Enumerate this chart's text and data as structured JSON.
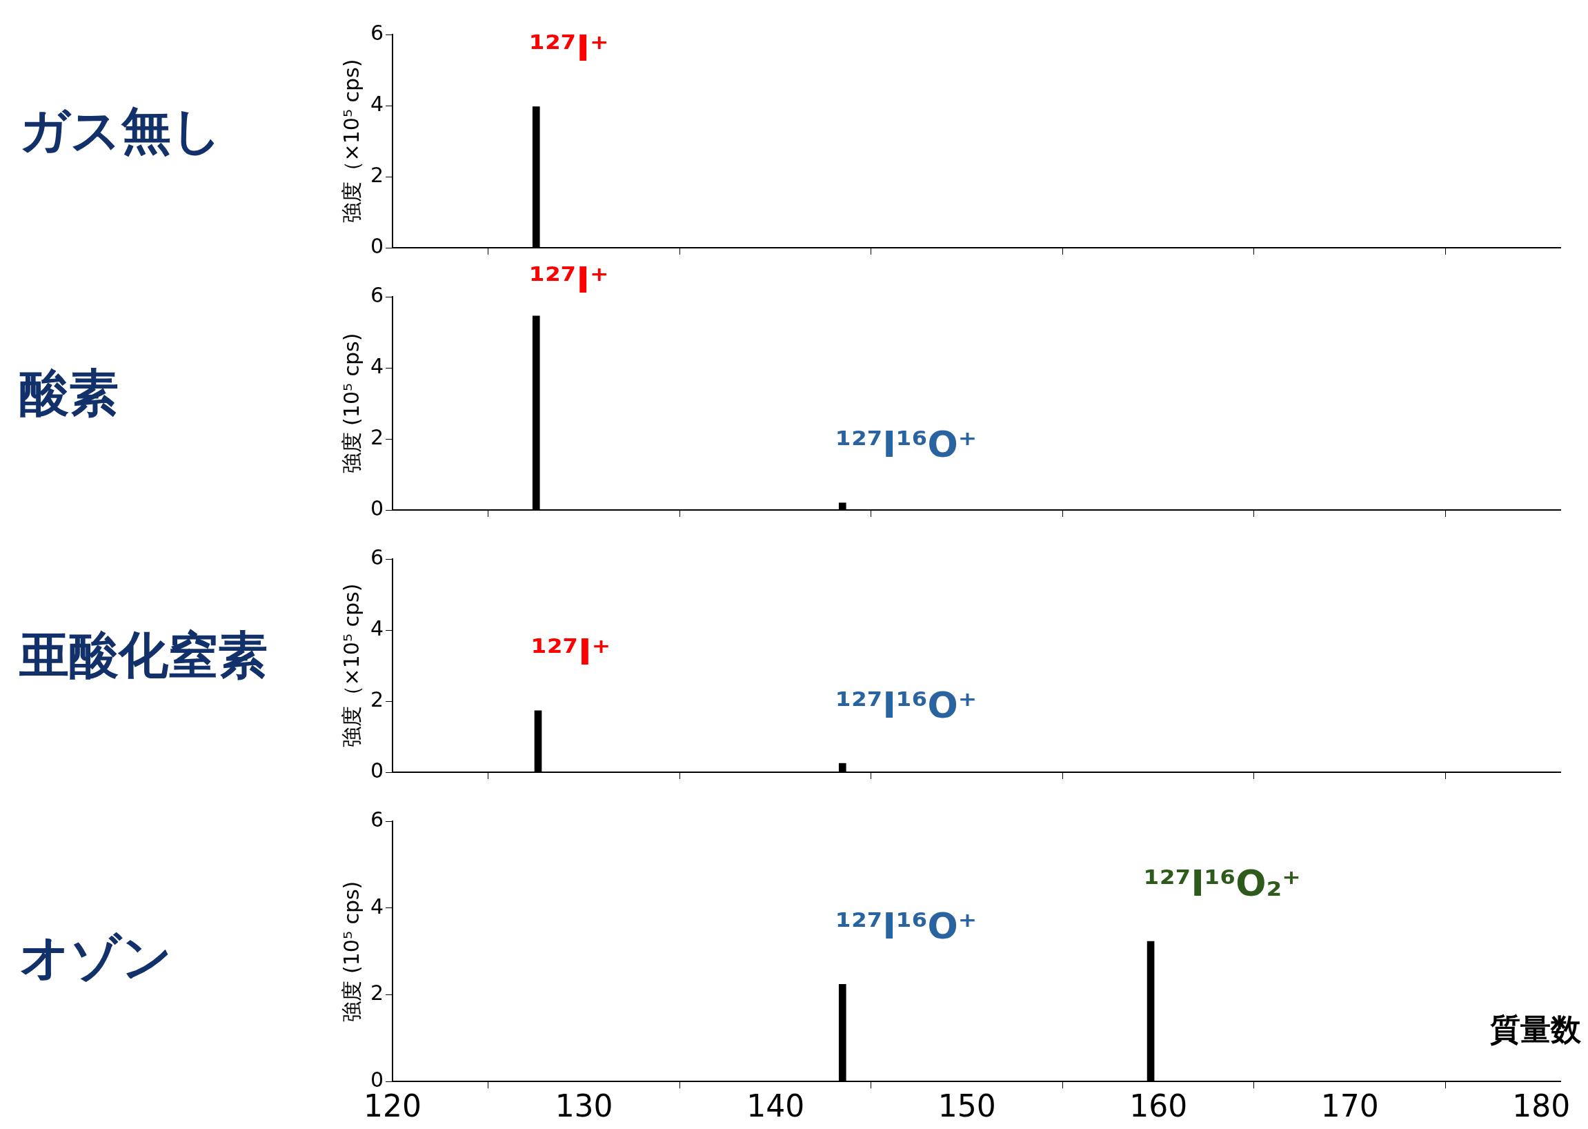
{
  "chart_data": [
    {
      "type": "bar",
      "title": "ガス無し",
      "ylabel": "強度（×10⁵ cps)",
      "x": [
        127.5
      ],
      "values": [
        3.97
      ],
      "color": "#000000",
      "xlim": [
        120,
        181
      ],
      "xticks": [
        120,
        130,
        140,
        150,
        160,
        170,
        180
      ],
      "ylim": [
        0,
        6
      ],
      "yticks": [
        0,
        2,
        4,
        6
      ],
      "tick_labels": "y",
      "grid": false,
      "legend": false,
      "annotations": [
        "¹²⁷I⁺"
      ]
    },
    {
      "type": "bar",
      "title": "酸素",
      "ylabel": "強度 (10⁵ cps)",
      "x": [
        127.5,
        143.5
      ],
      "values": [
        5.46,
        0.2
      ],
      "color": "#000000",
      "xlim": [
        120,
        181
      ],
      "xticks": [
        120,
        130,
        140,
        150,
        160,
        170,
        180
      ],
      "ylim": [
        0,
        6
      ],
      "yticks": [
        0,
        2,
        4,
        6
      ],
      "tick_labels": "y",
      "grid": false,
      "legend": false,
      "annotations": [
        "¹²⁷I⁺",
        "¹²⁷I¹⁶O⁺"
      ]
    },
    {
      "type": "bar",
      "title": "亜酸化窒素",
      "ylabel": "強度（×10⁵ cps)",
      "x": [
        127.6,
        143.5
      ],
      "values": [
        1.73,
        0.25
      ],
      "color": "#000000",
      "xlim": [
        120,
        181
      ],
      "xticks": [
        120,
        130,
        140,
        150,
        160,
        170,
        180
      ],
      "ylim": [
        0,
        6
      ],
      "yticks": [
        0,
        2,
        4,
        6
      ],
      "tick_labels": "y",
      "grid": false,
      "legend": false,
      "annotations": [
        "¹²⁷I⁺",
        "¹²⁷I¹⁶O⁺"
      ]
    },
    {
      "type": "bar",
      "title": "オゾン",
      "ylabel": "強度 (10⁵ cps)",
      "xlabel": "質量数",
      "x": [
        143.5,
        159.6
      ],
      "values": [
        2.24,
        3.23
      ],
      "color": "#000000",
      "xlim": [
        120,
        181
      ],
      "xticks": [
        120,
        130,
        140,
        150,
        160,
        170,
        180
      ],
      "ylim": [
        0,
        6
      ],
      "yticks": [
        0,
        2,
        4,
        6
      ],
      "grid": false,
      "legend": false,
      "annotations": [
        "¹²⁷I¹⁶O⁺",
        "¹²⁷I¹⁶O₂⁺"
      ]
    }
  ]
}
